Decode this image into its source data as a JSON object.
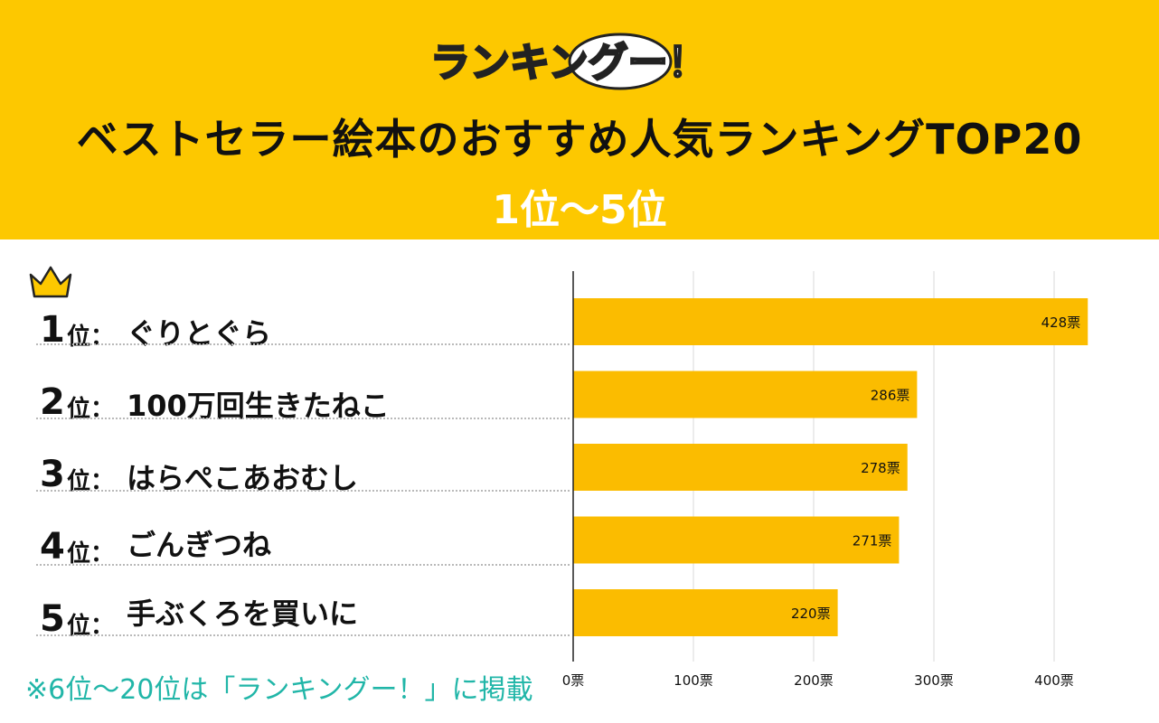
{
  "header": {
    "logo_text": "ランキングー！",
    "title": "ベストセラー絵本のおすすめ人気ランキングTOP20",
    "subtitle": "1位〜5位"
  },
  "ranking": [
    {
      "num": "1",
      "suffix": "位：",
      "name": "ぐりとぐら"
    },
    {
      "num": "2",
      "suffix": "位：",
      "name": "100万回生きたねこ"
    },
    {
      "num": "3",
      "suffix": "位：",
      "name": "はらぺこあおむし"
    },
    {
      "num": "4",
      "suffix": "位：",
      "name": "ごんぎつね"
    },
    {
      "num": "5",
      "suffix": "位：",
      "name": "手ぶくろを買いに"
    }
  ],
  "note": "※6位〜20位は「ランキングー！」に掲載",
  "colors": {
    "header_bg": "#fdc800",
    "bar": "#fbbc00",
    "note": "#21b6a8"
  },
  "chart_data": {
    "type": "bar",
    "orientation": "horizontal",
    "categories": [
      "ぐりとぐら",
      "100万回生きたねこ",
      "はらぺこあおむし",
      "ごんぎつね",
      "手ぶくろを買いに"
    ],
    "values": [
      428,
      286,
      278,
      271,
      220
    ],
    "value_labels": [
      "428票",
      "286票",
      "278票",
      "271票",
      "220票"
    ],
    "xlim": [
      0,
      400
    ],
    "x_ticks": [
      0,
      100,
      200,
      300,
      400
    ],
    "x_tick_labels": [
      "0票",
      "100票",
      "200票",
      "300票",
      "400票"
    ],
    "grid": true
  }
}
